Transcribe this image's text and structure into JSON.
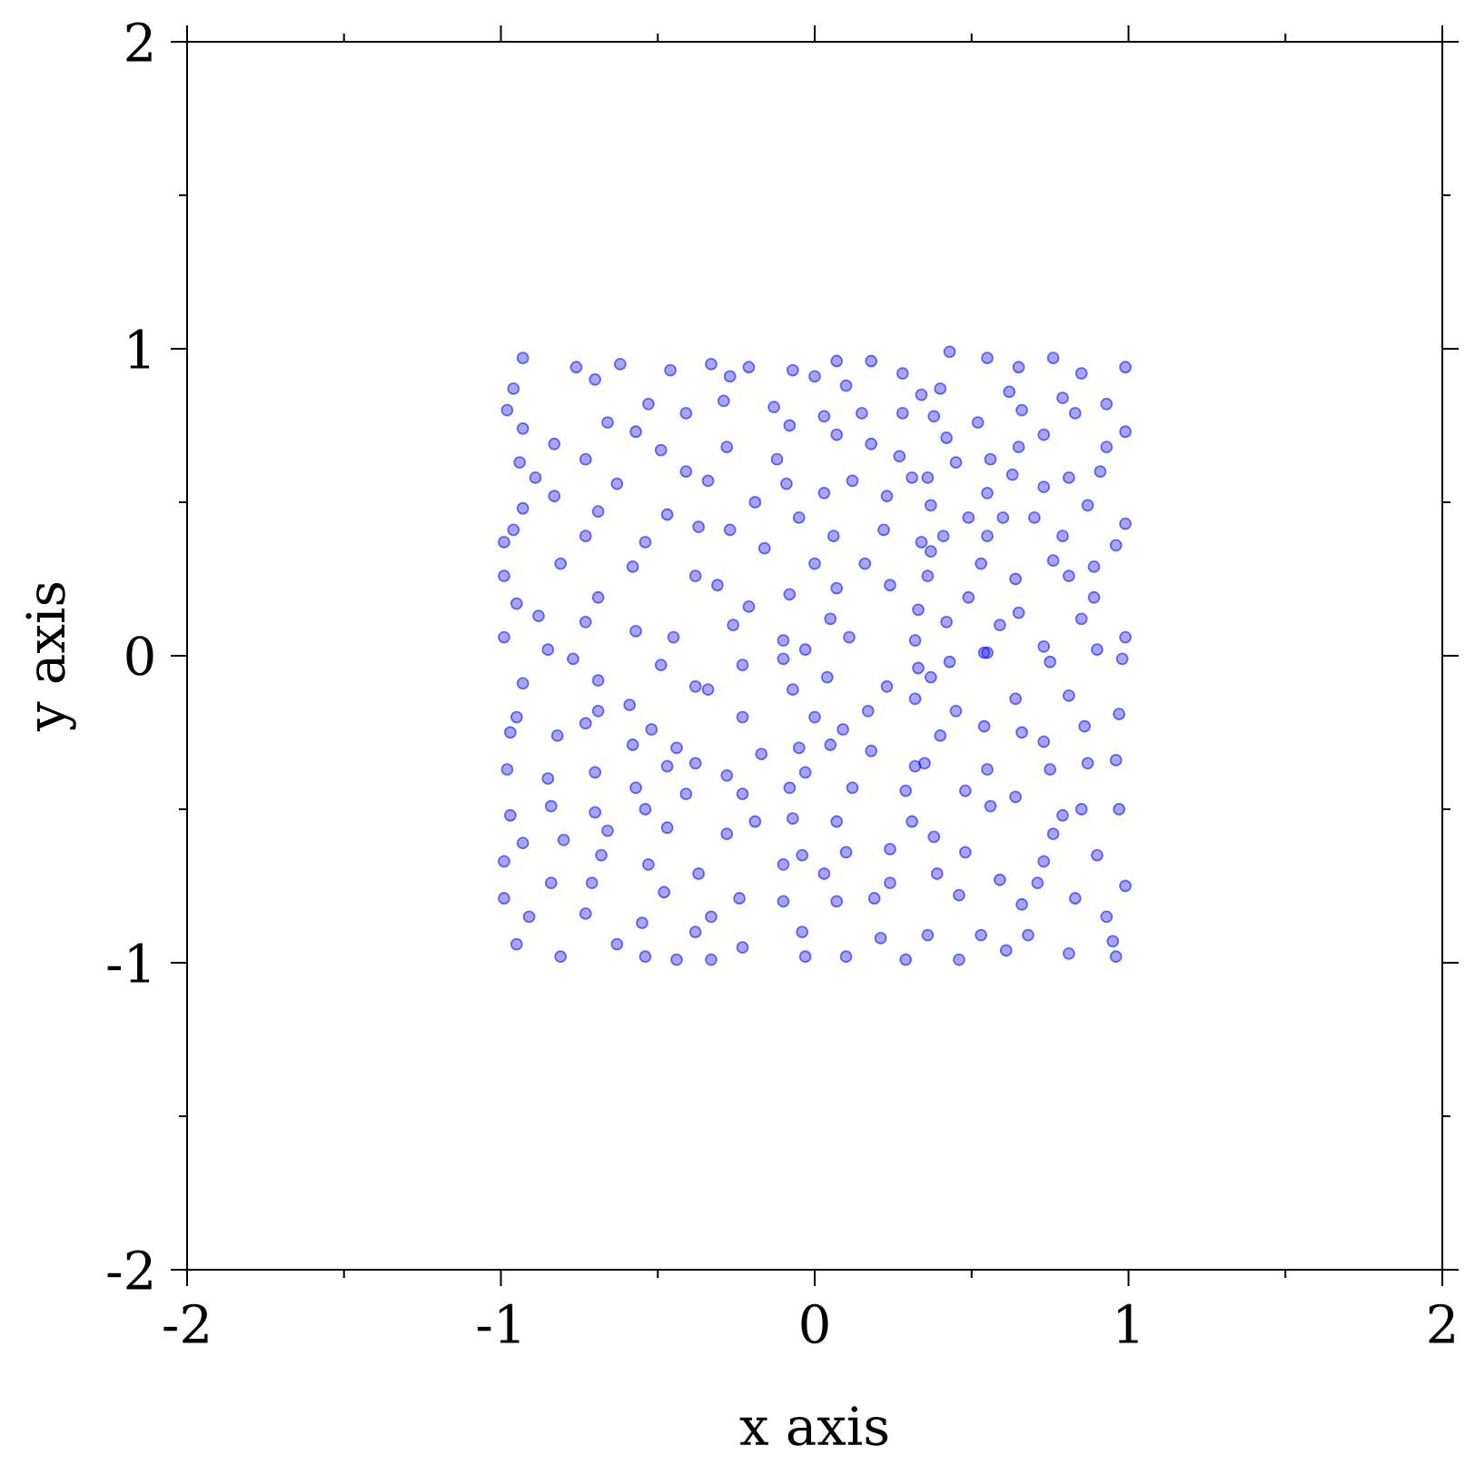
{
  "chart_data": {
    "type": "scatter",
    "xlabel": "x axis",
    "ylabel": "y axis",
    "xlim": [
      -2,
      2
    ],
    "ylim": [
      -2,
      2
    ],
    "xticks": [
      -2,
      {
        "value": -1.5,
        "label": null
      },
      -1,
      {
        "value": -0.5,
        "label": null
      },
      0,
      {
        "value": 0.5,
        "label": null
      },
      1,
      {
        "value": 1.5,
        "label": null
      },
      2
    ],
    "yticks": [
      -2,
      {
        "value": -1.5,
        "label": null
      },
      -1,
      {
        "value": -0.5,
        "label": null
      },
      0,
      {
        "value": 0.5,
        "label": null
      },
      1,
      {
        "value": 1.5,
        "label": null
      },
      2
    ],
    "marker": "circle",
    "series": [
      {
        "color": "#0000ff",
        "x": [
          -0.93,
          -0.76,
          -0.62,
          -0.46,
          -0.96,
          -0.7,
          -0.53,
          -0.98,
          -0.66,
          -0.93,
          -0.57,
          -0.41,
          -0.83,
          -0.49,
          -0.94,
          -0.73,
          -0.41,
          -0.89,
          -0.63,
          -0.83,
          -0.93,
          -0.69,
          -0.47,
          -0.96,
          -0.73,
          -0.54,
          -0.37,
          -0.99,
          -0.81,
          -0.58,
          -0.38,
          -0.99,
          -0.69,
          -0.95,
          -0.88,
          -0.73,
          -0.99,
          -0.85,
          -0.57,
          -0.45,
          -0.33,
          -0.21,
          -0.07,
          0.07,
          0.18,
          0.28,
          -0.27,
          0.0,
          0.1,
          -0.29,
          -0.13,
          0.34,
          0.03,
          0.15,
          0.28,
          -0.08,
          0.07,
          0.18,
          -0.28,
          -0.12,
          0.27,
          -0.34,
          -0.09,
          0.12,
          0.31,
          -0.19,
          0.03,
          0.23,
          -0.05,
          -0.27,
          0.06,
          0.22,
          0.34,
          -0.16,
          0.0,
          0.16,
          -0.31,
          0.07,
          0.24,
          -0.21,
          -0.08,
          0.05,
          0.33,
          -0.26,
          -0.1,
          0.11,
          0.32,
          -0.03,
          0.43,
          0.55,
          0.65,
          0.76,
          0.85,
          0.99,
          0.4,
          0.62,
          0.79,
          0.93,
          0.38,
          0.52,
          0.66,
          0.83,
          0.42,
          0.73,
          0.99,
          0.65,
          0.93,
          0.45,
          0.56,
          0.36,
          0.63,
          0.81,
          0.91,
          0.55,
          0.73,
          0.37,
          0.87,
          0.99,
          0.49,
          0.7,
          0.6,
          0.55,
          0.79,
          0.96,
          0.41,
          0.37,
          0.76,
          0.89,
          0.53,
          0.64,
          0.81,
          0.36,
          0.49,
          0.65,
          0.89,
          0.42,
          0.59,
          0.85,
          0.99,
          0.73,
          0.54,
          0.9,
          -0.77,
          -0.49,
          -0.93,
          -0.69,
          -0.59,
          -0.38,
          -0.95,
          -0.69,
          -0.97,
          -0.82,
          -0.73,
          -0.52,
          -0.44,
          -0.58,
          -0.98,
          -0.85,
          -0.7,
          -0.47,
          -0.57,
          -0.38,
          -0.97,
          -0.84,
          -0.7,
          -0.54,
          -0.41,
          -0.93,
          -0.8,
          -0.66,
          -0.47,
          -0.99,
          -0.68,
          -0.53,
          -0.37,
          -0.84,
          -0.71,
          -0.99,
          -0.48,
          -0.91,
          -0.73,
          -0.55,
          -0.38,
          -0.95,
          -0.81,
          -0.63,
          -0.44,
          -0.54,
          -0.23,
          -0.1,
          0.04,
          0.23,
          0.33,
          -0.34,
          -0.07,
          -0.23,
          0.0,
          0.17,
          0.32,
          0.09,
          -0.17,
          -0.05,
          0.05,
          0.18,
          0.32,
          -0.28,
          -0.03,
          -0.08,
          0.12,
          0.29,
          -0.23,
          -0.19,
          -0.07,
          0.07,
          0.31,
          -0.28,
          -0.04,
          0.1,
          0.24,
          -0.1,
          0.03,
          0.24,
          -0.24,
          -0.33,
          -0.1,
          0.07,
          0.19,
          -0.04,
          0.21,
          -0.23,
          -0.03,
          0.1,
          0.29,
          -0.33,
          0.43,
          0.55,
          0.75,
          0.98,
          0.37,
          0.64,
          0.81,
          0.97,
          0.45,
          0.54,
          0.86,
          0.4,
          0.66,
          0.73,
          0.35,
          0.55,
          0.75,
          0.96,
          0.87,
          0.64,
          0.48,
          0.85,
          0.97,
          0.56,
          0.79,
          0.76,
          0.38,
          0.48,
          0.9,
          0.73,
          0.39,
          0.59,
          0.71,
          0.99,
          0.46,
          0.83,
          0.66,
          0.93,
          0.36,
          0.53,
          0.68,
          0.95,
          0.81,
          0.61,
          0.46,
          0.96
        ],
        "values": [
          0.97,
          0.94,
          0.95,
          0.93,
          0.87,
          0.9,
          0.82,
          0.8,
          0.76,
          0.74,
          0.73,
          0.79,
          0.69,
          0.67,
          0.63,
          0.64,
          0.6,
          0.58,
          0.56,
          0.52,
          0.48,
          0.47,
          0.46,
          0.41,
          0.39,
          0.37,
          0.42,
          0.37,
          0.3,
          0.29,
          0.26,
          0.26,
          0.19,
          0.17,
          0.13,
          0.11,
          0.06,
          0.02,
          0.08,
          0.06,
          0.95,
          0.94,
          0.93,
          0.96,
          0.96,
          0.92,
          0.91,
          0.91,
          0.88,
          0.83,
          0.81,
          0.85,
          0.78,
          0.79,
          0.79,
          0.75,
          0.72,
          0.69,
          0.68,
          0.64,
          0.65,
          0.57,
          0.56,
          0.57,
          0.58,
          0.5,
          0.53,
          0.52,
          0.45,
          0.41,
          0.39,
          0.41,
          0.37,
          0.35,
          0.3,
          0.3,
          0.23,
          0.22,
          0.23,
          0.16,
          0.2,
          0.12,
          0.15,
          0.1,
          0.05,
          0.06,
          0.05,
          0.02,
          0.99,
          0.97,
          0.94,
          0.97,
          0.92,
          0.94,
          0.87,
          0.86,
          0.84,
          0.82,
          0.78,
          0.76,
          0.8,
          0.79,
          0.71,
          0.72,
          0.73,
          0.68,
          0.68,
          0.63,
          0.64,
          0.58,
          0.59,
          0.58,
          0.6,
          0.53,
          0.55,
          0.49,
          0.49,
          0.43,
          0.45,
          0.45,
          0.45,
          0.39,
          0.39,
          0.36,
          0.39,
          0.34,
          0.31,
          0.29,
          0.3,
          0.25,
          0.26,
          0.26,
          0.19,
          0.14,
          0.19,
          0.11,
          0.1,
          0.12,
          0.06,
          0.03,
          0.01,
          0.02,
          -0.01,
          -0.03,
          -0.09,
          -0.08,
          -0.16,
          -0.1,
          -0.2,
          -0.18,
          -0.25,
          -0.26,
          -0.22,
          -0.24,
          -0.3,
          -0.29,
          -0.37,
          -0.4,
          -0.38,
          -0.36,
          -0.43,
          -0.35,
          -0.52,
          -0.49,
          -0.51,
          -0.5,
          -0.45,
          -0.61,
          -0.6,
          -0.57,
          -0.56,
          -0.67,
          -0.65,
          -0.68,
          -0.71,
          -0.74,
          -0.74,
          -0.79,
          -0.77,
          -0.85,
          -0.84,
          -0.87,
          -0.9,
          -0.94,
          -0.98,
          -0.94,
          -0.99,
          -0.98,
          -0.03,
          -0.01,
          -0.07,
          -0.1,
          -0.04,
          -0.11,
          -0.11,
          -0.2,
          -0.2,
          -0.18,
          -0.14,
          -0.24,
          -0.32,
          -0.3,
          -0.29,
          -0.31,
          -0.36,
          -0.39,
          -0.38,
          -0.43,
          -0.43,
          -0.44,
          -0.45,
          -0.54,
          -0.53,
          -0.54,
          -0.54,
          -0.58,
          -0.65,
          -0.64,
          -0.63,
          -0.68,
          -0.71,
          -0.74,
          -0.79,
          -0.85,
          -0.8,
          -0.8,
          -0.79,
          -0.9,
          -0.92,
          -0.95,
          -0.98,
          -0.98,
          -0.99,
          -0.99,
          -0.02,
          0.01,
          -0.02,
          -0.01,
          -0.07,
          -0.14,
          -0.13,
          -0.19,
          -0.18,
          -0.23,
          -0.23,
          -0.26,
          -0.25,
          -0.28,
          -0.35,
          -0.37,
          -0.37,
          -0.34,
          -0.35,
          -0.46,
          -0.44,
          -0.5,
          -0.5,
          -0.49,
          -0.52,
          -0.58,
          -0.59,
          -0.64,
          -0.65,
          -0.67,
          -0.71,
          -0.73,
          -0.74,
          -0.75,
          -0.78,
          -0.79,
          -0.81,
          -0.85,
          -0.91,
          -0.91,
          -0.91,
          -0.93,
          -0.97,
          -0.96,
          -0.99,
          -0.98
        ]
      }
    ]
  }
}
